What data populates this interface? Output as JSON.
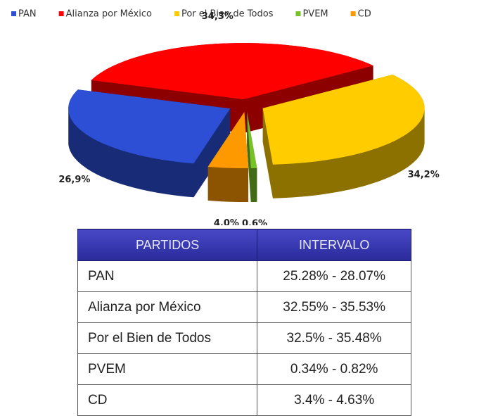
{
  "chart_data": {
    "type": "pie",
    "categories": [
      "PAN",
      "Alianza por México",
      "Por el Bien de Todos",
      "PVEM",
      "CD"
    ],
    "values": [
      26.9,
      34.3,
      34.2,
      0.6,
      4.0
    ],
    "value_labels": [
      "26,9%",
      "34,3%",
      "34,2%",
      "0,6%",
      "4,0%"
    ],
    "colors": [
      "#2c4fd6",
      "#ff0000",
      "#ffcc00",
      "#77c227",
      "#ff9900"
    ],
    "legend": "top"
  },
  "table": {
    "header": [
      "PARTIDOS",
      "INTERVALO"
    ],
    "rows": [
      [
        "PAN",
        "25.28% - 28.07%"
      ],
      [
        "Alianza por México",
        "32.55% - 35.53%"
      ],
      [
        "Por el Bien de Todos",
        "32.5% - 35.48%"
      ],
      [
        "PVEM",
        "0.34% - 0.82%"
      ],
      [
        "CD",
        "3.4% - 4.63%"
      ]
    ]
  }
}
